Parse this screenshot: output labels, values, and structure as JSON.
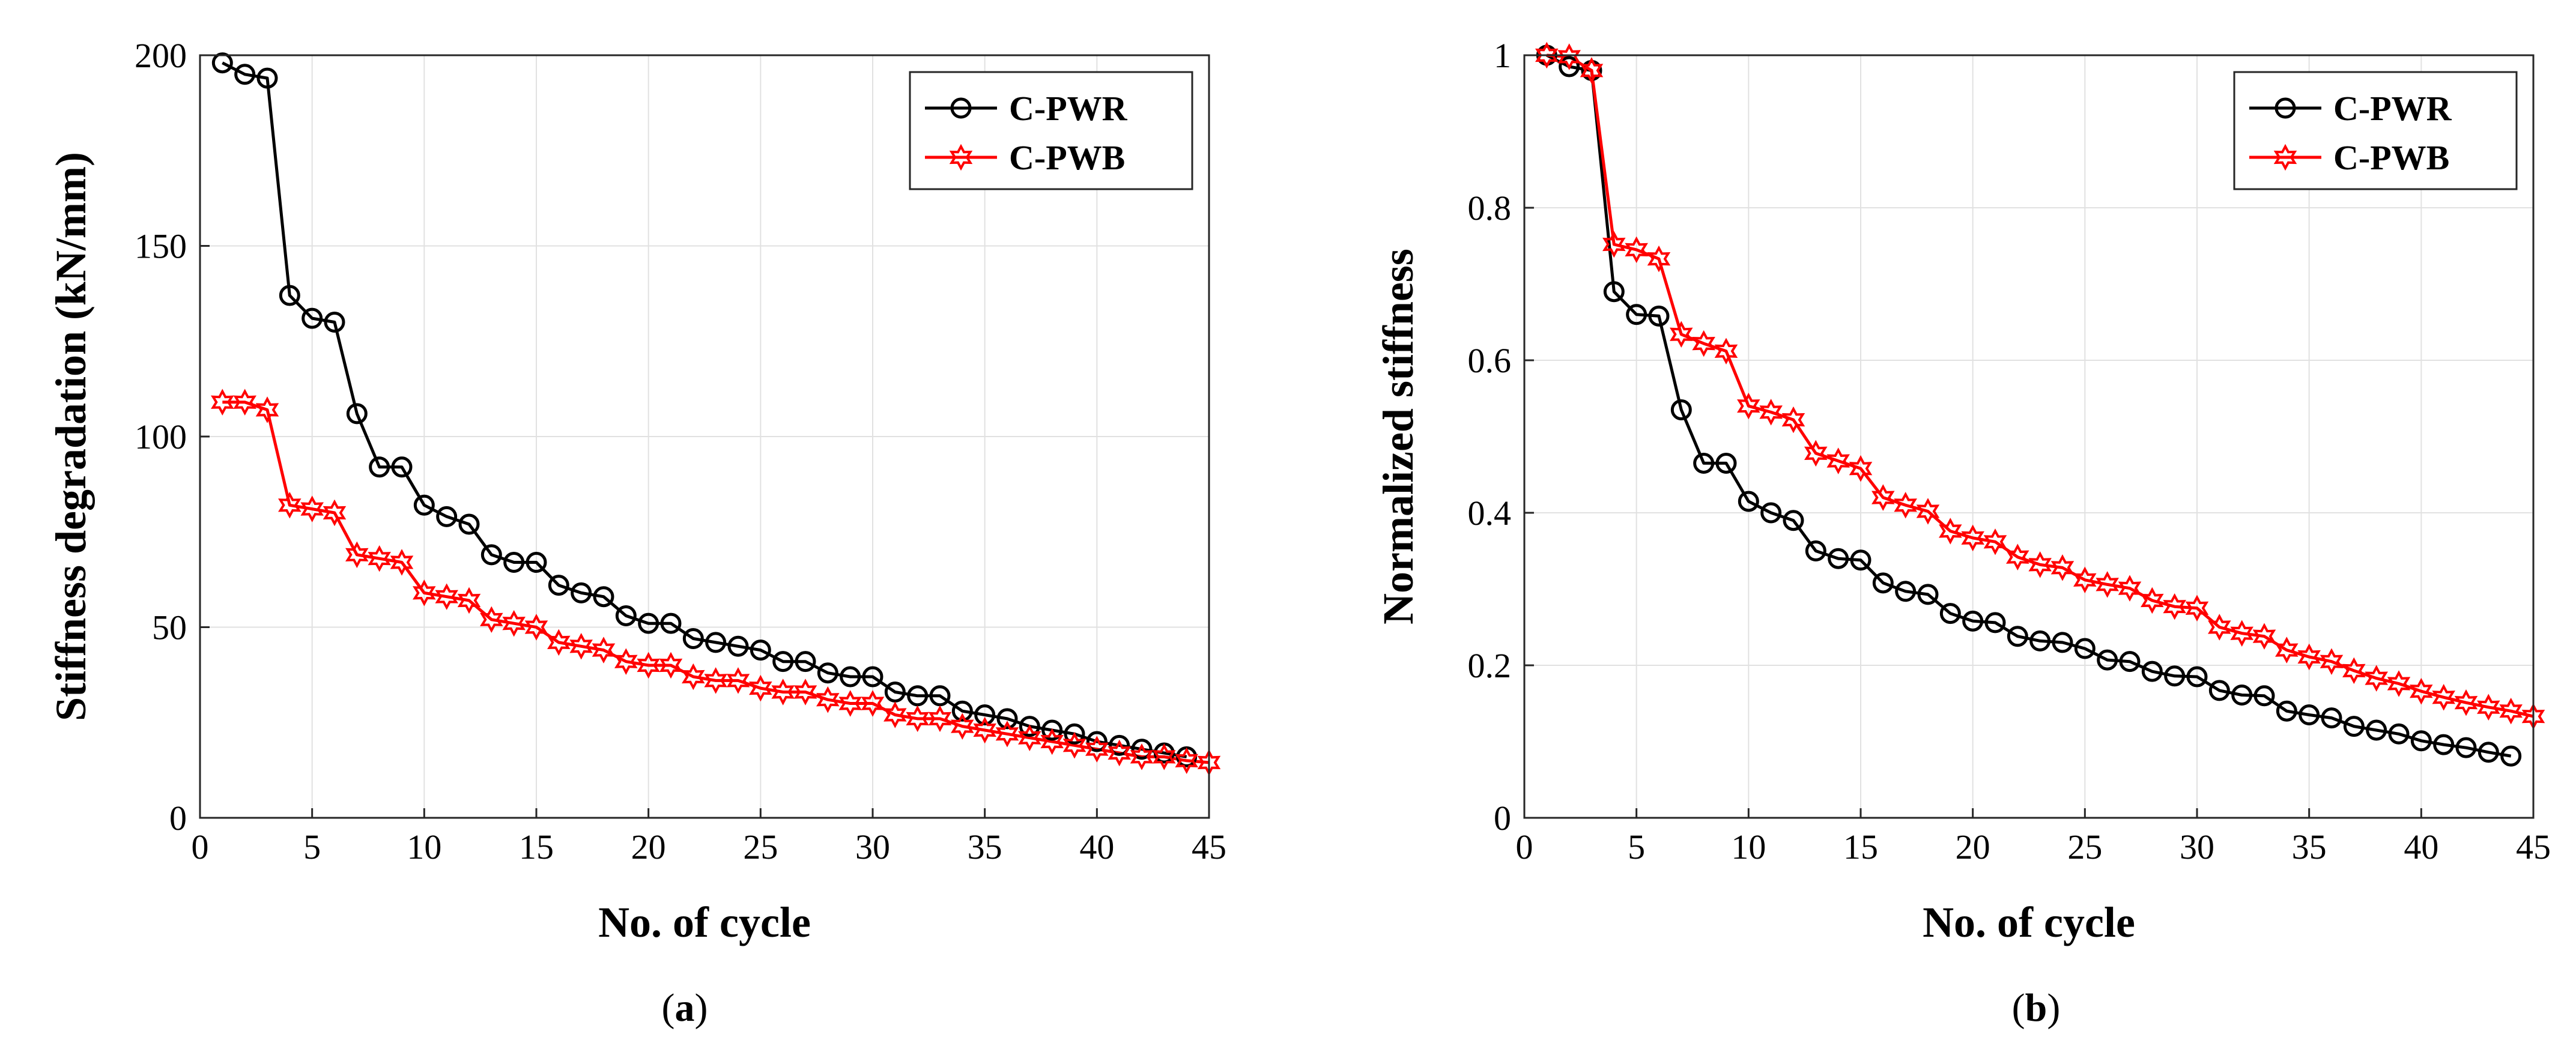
{
  "chart_data": [
    {
      "type": "line",
      "panel_label": "a",
      "xlabel": "No. of cycle",
      "ylabel": "Stiffness degradation (kN/mm)",
      "xlim": [
        0,
        45
      ],
      "ylim": [
        0,
        200
      ],
      "xticks": [
        0,
        5,
        10,
        15,
        20,
        25,
        30,
        35,
        40,
        45
      ],
      "yticks": [
        0,
        50,
        100,
        150,
        200
      ],
      "grid": true,
      "legend_position": "top-right",
      "series": [
        {
          "name": "C-PWR",
          "color": "#000000",
          "marker": "circle",
          "x": [
            1,
            2,
            3,
            4,
            5,
            6,
            7,
            8,
            9,
            10,
            11,
            12,
            13,
            14,
            15,
            16,
            17,
            18,
            19,
            20,
            21,
            22,
            23,
            24,
            25,
            26,
            27,
            28,
            29,
            30,
            31,
            32,
            33,
            34,
            35,
            36,
            37,
            38,
            39,
            40,
            41,
            42,
            43,
            44
          ],
          "values": [
            198,
            195,
            194,
            137,
            131,
            130,
            106,
            92,
            92,
            82,
            79,
            77,
            69,
            67,
            67,
            61,
            59,
            58,
            53,
            51,
            51,
            47,
            46,
            45,
            44,
            41,
            41,
            38,
            37,
            37,
            33,
            32,
            32,
            28,
            27,
            26,
            24,
            23,
            22,
            20,
            19,
            18,
            17,
            16
          ]
        },
        {
          "name": "C-PWB",
          "color": "#ff0000",
          "marker": "hexagram",
          "x": [
            1,
            2,
            3,
            4,
            5,
            6,
            7,
            8,
            9,
            10,
            11,
            12,
            13,
            14,
            15,
            16,
            17,
            18,
            19,
            20,
            21,
            22,
            23,
            24,
            25,
            26,
            27,
            28,
            29,
            30,
            31,
            32,
            33,
            34,
            35,
            36,
            37,
            38,
            39,
            40,
            41,
            42,
            43,
            44,
            45
          ],
          "values": [
            109,
            109,
            107,
            82,
            81,
            80,
            69,
            68,
            67,
            59,
            58,
            57,
            52,
            51,
            50,
            46,
            45,
            44,
            41,
            40,
            40,
            37,
            36,
            36,
            34,
            33,
            33,
            31,
            30,
            30,
            27,
            26,
            26,
            24,
            23,
            22,
            21,
            20,
            19,
            18,
            17,
            16,
            16,
            15,
            14.5
          ]
        }
      ]
    },
    {
      "type": "line",
      "panel_label": "b",
      "xlabel": "No. of cycle",
      "ylabel": "Normalized stiffness",
      "xlim": [
        0,
        45
      ],
      "ylim": [
        0,
        1
      ],
      "xticks": [
        0,
        5,
        10,
        15,
        20,
        25,
        30,
        35,
        40,
        45
      ],
      "yticks": [
        0,
        0.2,
        0.4,
        0.6,
        0.8,
        1
      ],
      "grid": true,
      "legend_position": "top-right",
      "series": [
        {
          "name": "C-PWR",
          "color": "#000000",
          "marker": "circle",
          "x": [
            1,
            2,
            3,
            4,
            5,
            6,
            7,
            8,
            9,
            10,
            11,
            12,
            13,
            14,
            15,
            16,
            17,
            18,
            19,
            20,
            21,
            22,
            23,
            24,
            25,
            26,
            27,
            28,
            29,
            30,
            31,
            32,
            33,
            34,
            35,
            36,
            37,
            38,
            39,
            40,
            41,
            42,
            43,
            44
          ],
          "values": [
            1,
            0.985,
            0.98,
            0.69,
            0.66,
            0.658,
            0.535,
            0.465,
            0.465,
            0.415,
            0.4,
            0.39,
            0.35,
            0.34,
            0.338,
            0.308,
            0.297,
            0.293,
            0.268,
            0.258,
            0.256,
            0.238,
            0.232,
            0.23,
            0.222,
            0.207,
            0.205,
            0.192,
            0.186,
            0.185,
            0.167,
            0.161,
            0.16,
            0.14,
            0.135,
            0.131,
            0.12,
            0.115,
            0.11,
            0.101,
            0.096,
            0.092,
            0.086,
            0.081
          ]
        },
        {
          "name": "C-PWB",
          "color": "#ff0000",
          "marker": "hexagram",
          "x": [
            1,
            2,
            3,
            4,
            5,
            6,
            7,
            8,
            9,
            10,
            11,
            12,
            13,
            14,
            15,
            16,
            17,
            18,
            19,
            20,
            21,
            22,
            23,
            24,
            25,
            26,
            27,
            28,
            29,
            30,
            31,
            32,
            33,
            34,
            35,
            36,
            37,
            38,
            39,
            40,
            41,
            42,
            43,
            44,
            45
          ],
          "values": [
            1,
            0.998,
            0.98,
            0.752,
            0.745,
            0.733,
            0.634,
            0.622,
            0.612,
            0.54,
            0.532,
            0.522,
            0.478,
            0.468,
            0.458,
            0.42,
            0.41,
            0.402,
            0.376,
            0.367,
            0.362,
            0.342,
            0.332,
            0.328,
            0.312,
            0.306,
            0.301,
            0.285,
            0.277,
            0.275,
            0.25,
            0.242,
            0.238,
            0.22,
            0.211,
            0.205,
            0.193,
            0.183,
            0.176,
            0.166,
            0.158,
            0.151,
            0.145,
            0.14,
            0.133
          ]
        }
      ]
    }
  ]
}
